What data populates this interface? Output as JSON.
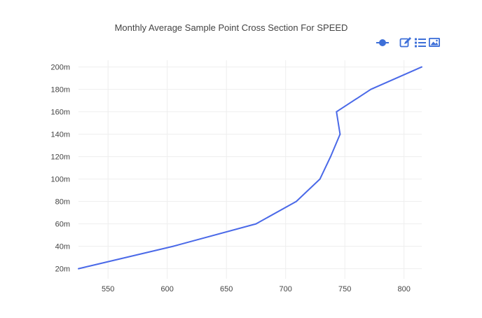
{
  "chart_data": {
    "type": "line",
    "title": "Monthly Average Sample Point Cross Section For SPEED",
    "xlabel": "",
    "ylabel": "",
    "xlim": [
      525,
      815
    ],
    "ylim": [
      11,
      206
    ],
    "x_ticks": [
      550,
      600,
      650,
      700,
      750,
      800
    ],
    "y_ticks": [
      "20m",
      "40m",
      "60m",
      "80m",
      "100m",
      "120m",
      "140m",
      "160m",
      "180m",
      "200m"
    ],
    "y_tick_values": [
      20,
      40,
      60,
      80,
      100,
      120,
      140,
      160,
      180,
      200
    ],
    "grid": true,
    "legend": "none",
    "series": [
      {
        "color": "#4a69e8",
        "points": [
          {
            "x": 525,
            "y": 20
          },
          {
            "x": 605,
            "y": 40
          },
          {
            "x": 675,
            "y": 60
          },
          {
            "x": 709,
            "y": 80
          },
          {
            "x": 729,
            "y": 100
          },
          {
            "x": 738,
            "y": 120
          },
          {
            "x": 746,
            "y": 140
          },
          {
            "x": 743,
            "y": 160
          },
          {
            "x": 772,
            "y": 180
          },
          {
            "x": 815,
            "y": 200
          }
        ]
      }
    ]
  },
  "toolbar": {
    "accent_color": "#3d6fd8",
    "icons": [
      "toggle-marker-icon",
      "edit-icon",
      "list-icon",
      "image-icon"
    ]
  }
}
